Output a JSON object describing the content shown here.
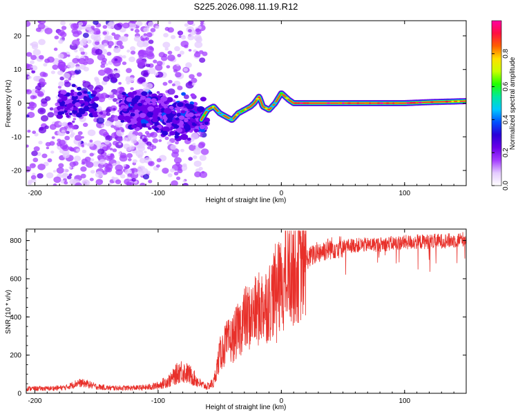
{
  "title": "S225.2026.098.11.19.R12",
  "chart_data": [
    {
      "type": "heatmap",
      "name": "spectrogram",
      "xlabel": "Height of straight line (km)",
      "ylabel": "Frequency (Hz)",
      "xlim": [
        -207,
        150
      ],
      "ylim": [
        -24.5,
        24.5
      ],
      "xticks": [
        -200,
        -100,
        0,
        100
      ],
      "xtick_labels": [
        "-200",
        "-100",
        "0",
        "100"
      ],
      "yticks": [
        -20,
        -10,
        0,
        10,
        20
      ],
      "ytick_labels": [
        "-20",
        "-10",
        "0",
        "10",
        "20"
      ],
      "ridge_line": {
        "x": [
          -65,
          -60,
          -55,
          -50,
          -45,
          -40,
          -35,
          -30,
          -25,
          -22,
          -18,
          -15,
          -10,
          -5,
          0,
          3,
          6,
          10,
          20,
          40,
          60,
          80,
          100,
          120,
          150
        ],
        "y": [
          -5,
          -2,
          -1,
          -3,
          -4,
          -5,
          -3,
          -2,
          -1,
          0,
          2,
          -1,
          -2,
          0,
          3,
          2,
          1,
          0,
          0,
          0,
          0,
          0,
          0,
          0.3,
          0.6
        ]
      },
      "colorbar": {
        "label": "Normalized spectral amplitude",
        "range": [
          0,
          1
        ],
        "ticks": [
          0.0,
          0.2,
          0.4,
          0.6,
          0.8
        ],
        "tick_labels": [
          "0.0",
          "0.2",
          "0.4",
          "0.6",
          "0.8"
        ],
        "colormap": [
          "#ffffff",
          "#e4cbff",
          "#a43dff",
          "#6a00e8",
          "#2a00d8",
          "#0050ff",
          "#00c8ff",
          "#00e8a0",
          "#20ff00",
          "#c8ff00",
          "#ffe000",
          "#ff6000",
          "#ff1040",
          "#ff00a0"
        ]
      }
    },
    {
      "type": "line",
      "name": "snr",
      "xlabel": "Height of straight line (km)",
      "ylabel": "SNR (10 * v/v)",
      "xlim": [
        -207,
        150
      ],
      "ylim": [
        0,
        860
      ],
      "xticks": [
        -200,
        -100,
        0,
        100
      ],
      "xtick_labels": [
        "-200",
        "-100",
        "0",
        "100"
      ],
      "yticks": [
        0,
        200,
        400,
        600,
        800
      ],
      "ytick_labels": [
        "0",
        "200",
        "400",
        "600",
        "800"
      ],
      "color": "#e8302a",
      "series": [
        {
          "name": "SNR",
          "x": [
            -207,
            -190,
            -175,
            -165,
            -158,
            -150,
            -140,
            -125,
            -110,
            -100,
            -90,
            -82,
            -75,
            -70,
            -65,
            -60,
            -55,
            -50,
            -45,
            -40,
            -35,
            -30,
            -25,
            -20,
            -15,
            -10,
            -5,
            0,
            5,
            10,
            15,
            20,
            25,
            30,
            40,
            50,
            60,
            80,
            100,
            120,
            140,
            150
          ],
          "values": [
            25,
            25,
            30,
            55,
            50,
            35,
            28,
            28,
            30,
            40,
            70,
            120,
            100,
            75,
            45,
            35,
            55,
            200,
            260,
            280,
            330,
            390,
            400,
            430,
            460,
            480,
            540,
            560,
            620,
            640,
            660,
            700,
            720,
            740,
            760,
            770,
            775,
            780,
            790,
            795,
            800,
            810
          ]
        }
      ]
    }
  ]
}
